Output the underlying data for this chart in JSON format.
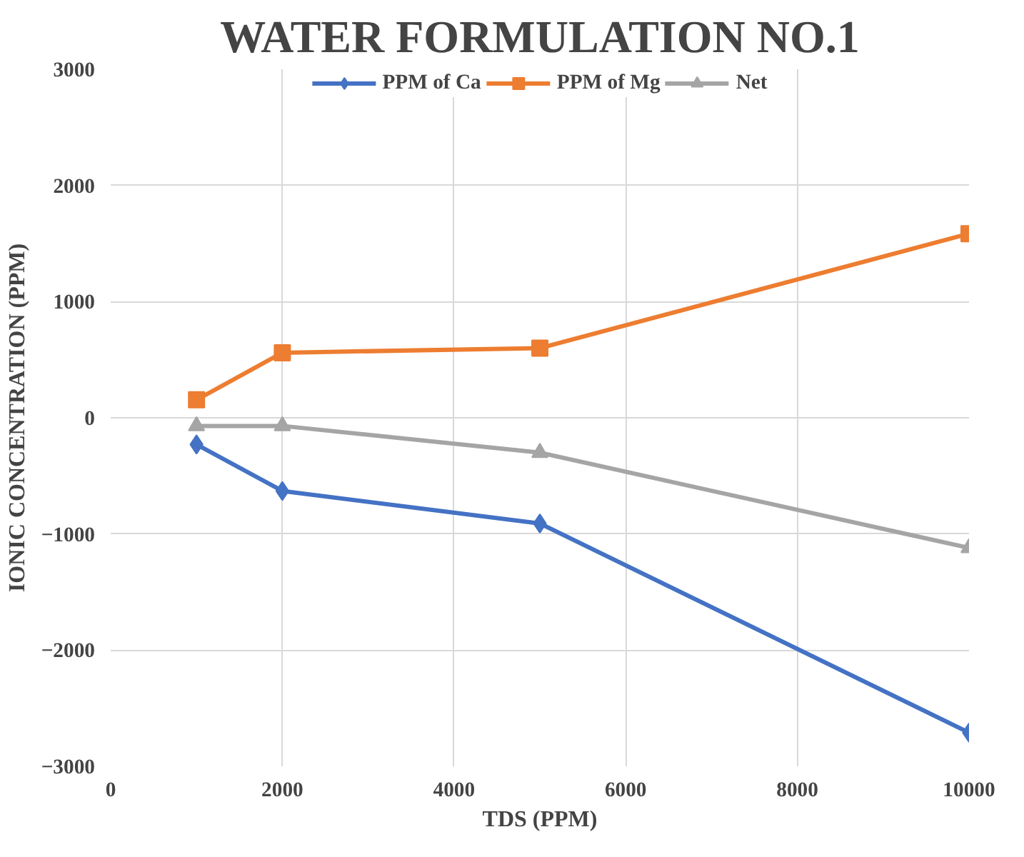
{
  "chart_data": {
    "type": "line",
    "title": "WATER FORMULATION NO.1",
    "xlabel": "TDS (PPM)",
    "ylabel": "IONIC CONCENTRATION (PPM)",
    "x": [
      1000,
      2000,
      5000,
      10000
    ],
    "series": [
      {
        "name": "PPM of Ca",
        "color": "#4472c4",
        "marker": "diamond",
        "values": [
          -230,
          -630,
          -910,
          -2710
        ]
      },
      {
        "name": "PPM of Mg",
        "color": "#ed7d31",
        "marker": "square",
        "values": [
          155,
          560,
          600,
          1585
        ]
      },
      {
        "name": "Net",
        "color": "#a5a5a5",
        "marker": "triangle",
        "values": [
          -70,
          -70,
          -300,
          -1120
        ]
      }
    ],
    "xlim": [
      0,
      10000
    ],
    "xticks": [
      0,
      2000,
      4000,
      6000,
      8000,
      10000
    ],
    "ylim": [
      -3000,
      3000
    ],
    "yticks": [
      -3000,
      -2000,
      -1000,
      0,
      1000,
      2000,
      3000
    ],
    "grid": true,
    "legend": "top",
    "line_style": "solid"
  }
}
